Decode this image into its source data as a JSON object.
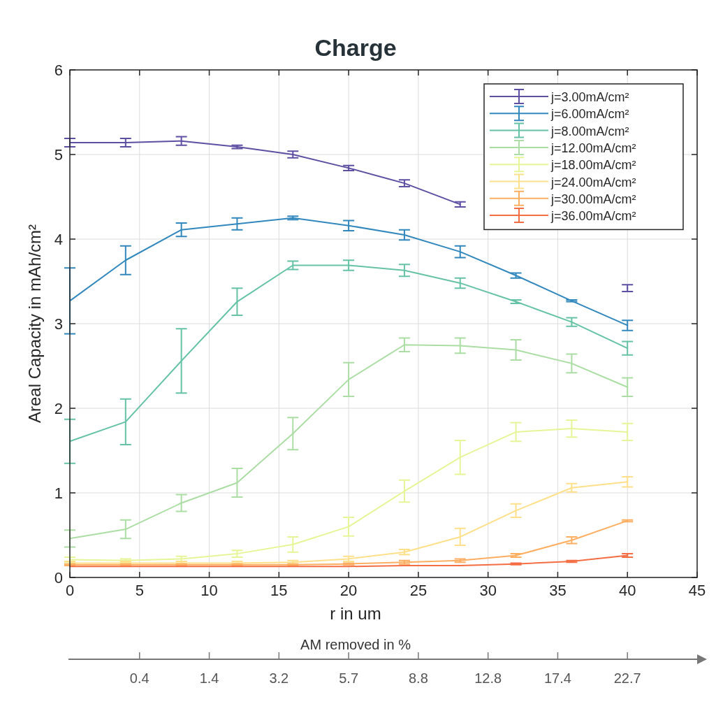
{
  "chart_data": {
    "type": "line",
    "title": "Charge",
    "xlabel": "r in um",
    "ylabel": "Areal Capacity in mAh/cm²",
    "x": [
      0,
      4,
      8,
      12,
      16,
      20,
      24,
      28,
      32,
      36,
      40
    ],
    "xlim": [
      0,
      45
    ],
    "xticks": [
      0,
      5,
      10,
      15,
      20,
      25,
      30,
      35,
      40,
      45
    ],
    "annotations": [
      "AM removed in %",
      "0.4",
      "1.4",
      "3.2",
      "5.7",
      "8.8",
      "12.8",
      "17.4",
      "22.7"
    ],
    "ylim": [
      0,
      6
    ],
    "yticks": [
      0,
      1,
      2,
      3,
      4,
      5,
      6
    ],
    "grid": true,
    "legend": "top right",
    "line_style": "solid",
    "series": [
      {
        "name": "j=3.00mA/cm²",
        "color": "#5e4fa2",
        "values": [
          5.14,
          5.14,
          5.16,
          5.09,
          5.0,
          4.84,
          4.66,
          4.41,
          null,
          null,
          3.42
        ],
        "errors": [
          0.05,
          0.05,
          0.05,
          0.02,
          0.04,
          0.03,
          0.04,
          0.03,
          null,
          null,
          0.04
        ]
      },
      {
        "name": "j=6.00mA/cm²",
        "color": "#3288bd",
        "values": [
          3.27,
          3.75,
          4.11,
          4.18,
          4.25,
          4.16,
          4.05,
          3.85,
          3.57,
          3.27,
          2.98
        ],
        "errors": [
          0.39,
          0.17,
          0.08,
          0.07,
          0.02,
          0.06,
          0.06,
          0.07,
          0.03,
          0.01,
          0.06
        ]
      },
      {
        "name": "j=8.00mA/cm²",
        "color": "#66c2a5",
        "values": [
          1.61,
          1.84,
          2.56,
          3.26,
          3.69,
          3.69,
          3.63,
          3.48,
          3.26,
          3.02,
          2.71
        ],
        "errors": [
          0.26,
          0.27,
          0.38,
          0.16,
          0.05,
          0.06,
          0.07,
          0.06,
          0.02,
          0.05,
          0.08
        ]
      },
      {
        "name": "j=12.00mA/cm²",
        "color": "#abdda4",
        "values": [
          0.46,
          0.57,
          0.88,
          1.12,
          1.7,
          2.34,
          2.75,
          2.74,
          2.69,
          2.53,
          2.25
        ],
        "errors": [
          0.1,
          0.11,
          0.1,
          0.17,
          0.19,
          0.2,
          0.08,
          0.09,
          0.12,
          0.11,
          0.11
        ]
      },
      {
        "name": "j=18.00mA/cm²",
        "color": "#e6f598",
        "values": [
          0.21,
          0.2,
          0.22,
          0.28,
          0.39,
          0.6,
          1.02,
          1.42,
          1.72,
          1.76,
          1.72
        ],
        "errors": [
          0.03,
          0.02,
          0.03,
          0.04,
          0.09,
          0.11,
          0.13,
          0.2,
          0.11,
          0.1,
          0.1
        ]
      },
      {
        "name": "j=24.00mA/cm²",
        "color": "#fee08b",
        "values": [
          0.17,
          0.17,
          0.17,
          0.17,
          0.18,
          0.22,
          0.3,
          0.48,
          0.79,
          1.06,
          1.13
        ],
        "errors": [
          0.02,
          0.02,
          0.02,
          0.02,
          0.02,
          0.03,
          0.03,
          0.1,
          0.08,
          0.05,
          0.06
        ]
      },
      {
        "name": "j=30.00mA/cm²",
        "color": "#fdae61",
        "values": [
          0.15,
          0.15,
          0.15,
          0.15,
          0.15,
          0.16,
          0.18,
          0.2,
          0.26,
          0.44,
          0.67
        ],
        "errors": [
          0.01,
          0.01,
          0.01,
          0.01,
          0.01,
          0.01,
          0.02,
          0.02,
          0.02,
          0.04,
          0.01
        ]
      },
      {
        "name": "j=36.00mA/cm²",
        "color": "#f46d43",
        "values": [
          0.13,
          0.13,
          0.13,
          0.13,
          0.13,
          0.13,
          0.14,
          0.14,
          0.16,
          0.19,
          0.26
        ],
        "errors": [
          null,
          null,
          null,
          null,
          null,
          null,
          null,
          null,
          0.01,
          0.01,
          0.02
        ]
      }
    ]
  }
}
